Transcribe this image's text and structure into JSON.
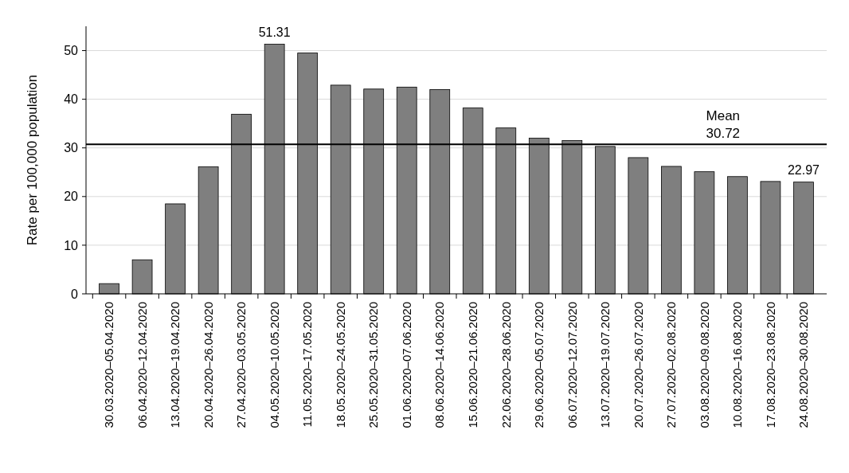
{
  "chart_data": {
    "type": "bar",
    "ylabel": "Rate per 100,000 population",
    "categories": [
      "30.03.2020–05.04.2020",
      "06.04.2020–12.04.2020",
      "13.04.2020–19.04.2020",
      "20.04.2020–26.04.2020",
      "27.04.2020–03.05.2020",
      "04.05.2020–10.05.2020",
      "11.05.2020–17.05.2020",
      "18.05.2020–24.05.2020",
      "25.05.2020–31.05.2020",
      "01.06.2020–07.06.2020",
      "08.06.2020–14.06.2020",
      "15.06.2020–21.06.2020",
      "22.06.2020–28.06.2020",
      "29.06.2020–05.07.2020",
      "06.07.2020–12.07.2020",
      "13.07.2020–19.07.2020",
      "20.07.2020–26.07.2020",
      "27.07.2020–02.08.2020",
      "03.08.2020–09.08.2020",
      "10.08.2020–16.08.2020",
      "17.08.2020–23.08.2020",
      "24.08.2020–30.08.2020"
    ],
    "values": [
      2.1,
      7.0,
      18.5,
      26.1,
      36.9,
      51.31,
      49.5,
      42.9,
      42.1,
      42.5,
      42.0,
      38.2,
      34.1,
      32.0,
      31.5,
      30.3,
      28.0,
      26.2,
      25.1,
      24.1,
      23.1,
      22.97
    ],
    "value_labels": [
      null,
      null,
      null,
      null,
      null,
      "51.31",
      null,
      null,
      null,
      null,
      null,
      null,
      null,
      null,
      null,
      null,
      null,
      null,
      null,
      null,
      null,
      "22.97"
    ],
    "color": "#7f7f7f",
    "ylim": [
      0,
      55
    ],
    "yticks": [
      0,
      10,
      20,
      30,
      40,
      50
    ],
    "grid": "y",
    "ref_lines": [
      {
        "axis": "y",
        "value": 30.72,
        "label": "Mean\n30.72",
        "color": "#000000"
      }
    ]
  }
}
